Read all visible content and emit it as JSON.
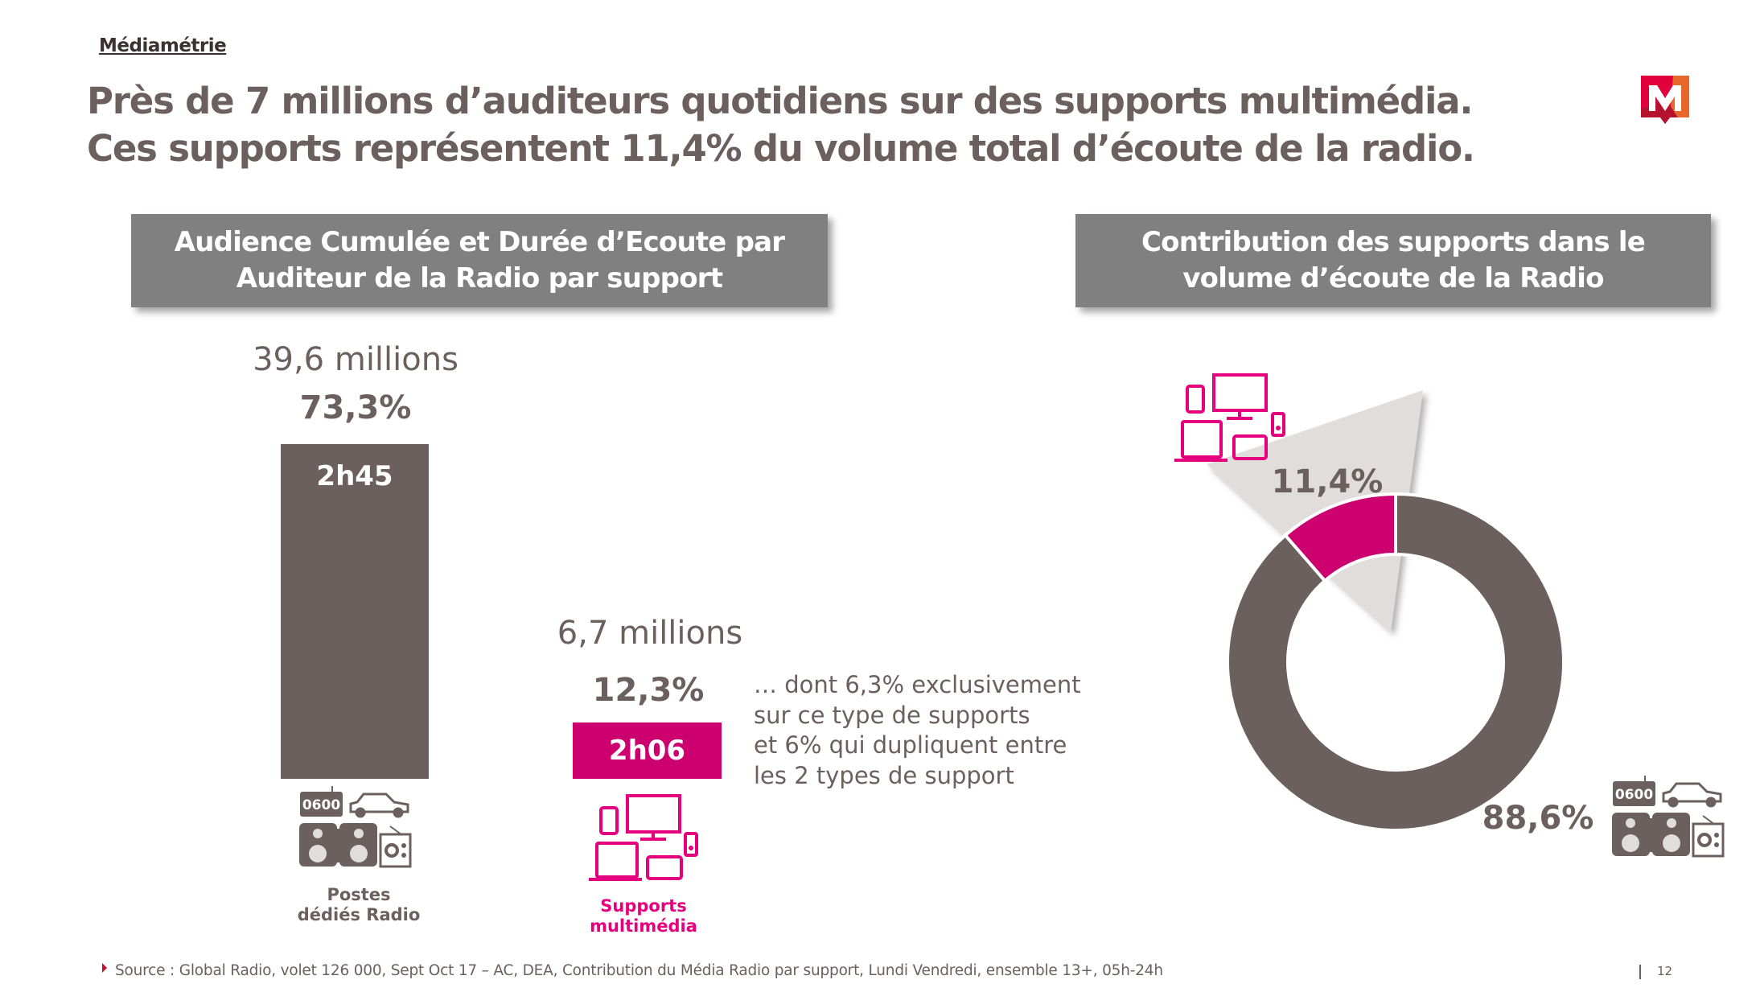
{
  "header": {
    "brand": "Médiamétrie",
    "title_line1": "Près de 7 millions d’auditeurs quotidiens sur des supports multimédia.",
    "title_line2": "Ces supports représentent 11,4% du volume total d’écoute de la radio.",
    "logo_letter": "M"
  },
  "left_panel": {
    "heading_line1": "Audience Cumulée et Durée d’Ecoute par",
    "heading_line2": "Auditeur de la Radio par support",
    "postes": {
      "audience": "39,6 millions",
      "percent": "73,3%",
      "duration": "2h45",
      "label_line1": "Postes",
      "label_line2": "dédiés Radio",
      "icon_clock_text": "0600"
    },
    "multimedia": {
      "audience": "6,7 millions",
      "percent": "12,3%",
      "duration": "2h06",
      "label_line1": "Supports",
      "label_line2": "multimédia"
    },
    "note_lines": [
      "… dont 6,3% exclusivement",
      "sur ce type de supports",
      "et 6% qui dupliquent entre",
      "les 2 types de support"
    ]
  },
  "right_panel": {
    "heading_line1": "Contribution des supports dans le",
    "heading_line2": "volume d’écoute de la Radio",
    "icon_clock_text": "0600"
  },
  "footer": {
    "source": "Source : Global Radio, volet 126 000, Sept Oct 17 – AC, DEA, Contribution du Média Radio par support, Lundi Vendredi, ensemble 13+, 05h-24h",
    "page_number": "12"
  },
  "colors": {
    "text": "#6c605e",
    "radio": "#6c605e",
    "multimedia": "#cc006e",
    "header_box": "#808080",
    "callout": "#e0dddc"
  },
  "chart_data": [
    {
      "type": "bar",
      "title": "Audience Cumulée et Durée d’Ecoute par Auditeur de la Radio par support",
      "categories": [
        "Postes dédiés Radio",
        "Supports multimédia"
      ],
      "series": [
        {
          "name": "Audience cumulée (%)",
          "values": [
            73.3,
            12.3
          ],
          "labels": [
            "73,3%",
            "12,3%"
          ]
        },
        {
          "name": "Audience (millions)",
          "values": [
            39.6,
            6.7
          ],
          "labels": [
            "39,6 millions",
            "6,7 millions"
          ]
        },
        {
          "name": "Durée d’écoute par auditeur",
          "values": [
            "2h45",
            "2h06"
          ]
        }
      ],
      "bar_colors": [
        "#6c605e",
        "#cc006e"
      ]
    },
    {
      "type": "pie",
      "variant": "donut",
      "title": "Contribution des supports dans le volume d’écoute de la Radio",
      "slices": [
        {
          "name": "Supports multimédia",
          "value": 11.4,
          "label": "11,4%",
          "color": "#cc006e"
        },
        {
          "name": "Postes dédiés Radio",
          "value": 88.6,
          "label": "88,6%",
          "color": "#6c605e"
        }
      ]
    }
  ]
}
